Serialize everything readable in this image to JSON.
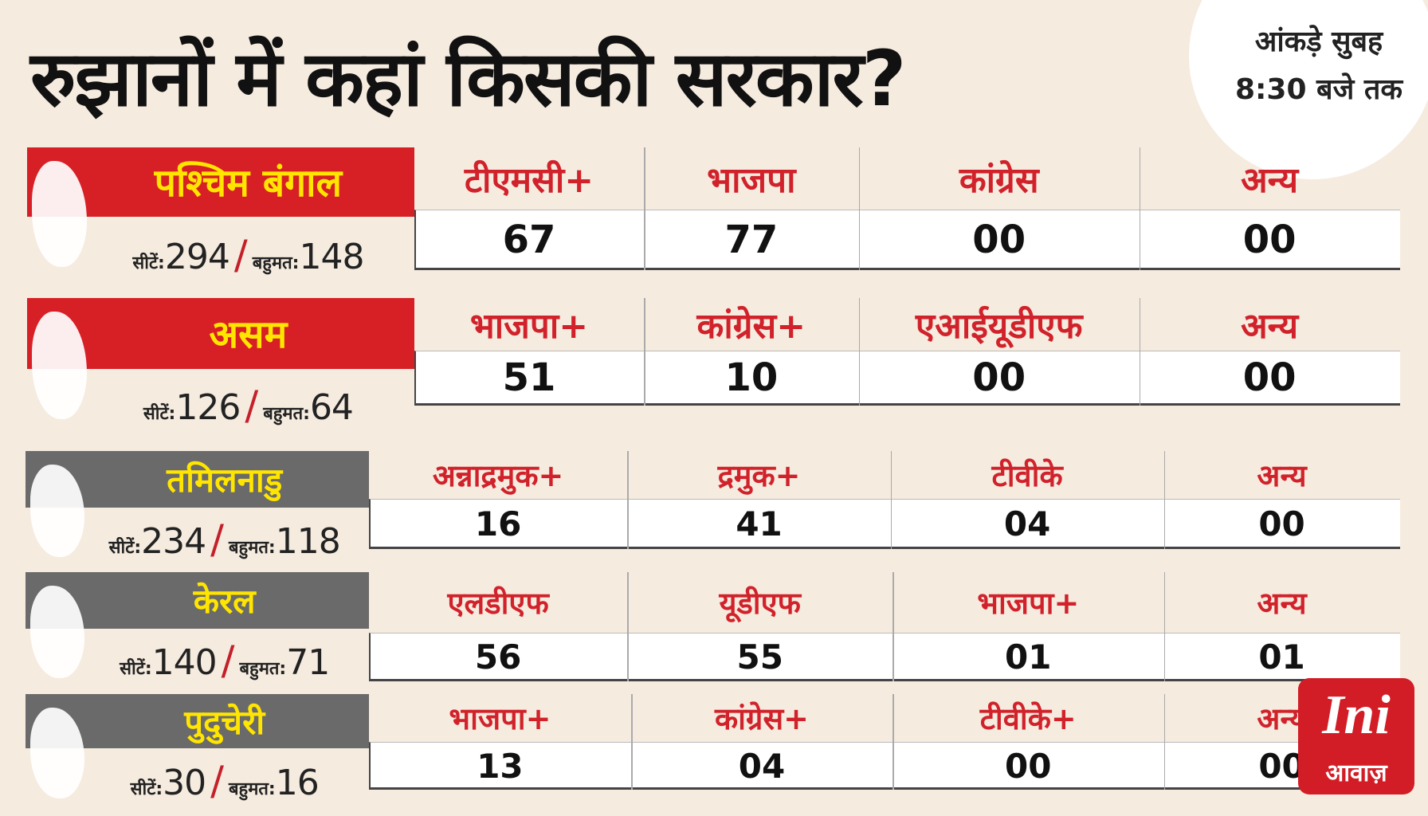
{
  "header": {
    "title": "रुझानों में कहां किसकी सरकार?",
    "note_line1": "आंकड़े सुबह",
    "note_line2": "8:30 बजे तक"
  },
  "states": [
    {
      "name": "पश्चिम बंगाल",
      "seats_label": "सीटें:",
      "seats": "294",
      "majority_label": "बहुमत:",
      "majority": "148",
      "parties": [
        "टीएमसी+",
        "भाजपा",
        "कांग्रेस",
        "अन्य"
      ],
      "leads": [
        "67",
        "77",
        "00",
        "00"
      ]
    },
    {
      "name": "असम",
      "seats_label": "सीटें:",
      "seats": "126",
      "majority_label": "बहुमत:",
      "majority": "64",
      "parties": [
        "भाजपा+",
        "कांग्रेस+",
        "एआईयूडीएफ",
        "अन्य"
      ],
      "leads": [
        "51",
        "10",
        "00",
        "00"
      ]
    },
    {
      "name": "तमिलनाडु",
      "seats_label": "सीटें:",
      "seats": "234",
      "majority_label": "बहुमत:",
      "majority": "118",
      "parties": [
        "अन्नाद्रमुक+",
        "द्रमुक+",
        "टीवीके",
        "अन्य"
      ],
      "leads": [
        "16",
        "41",
        "04",
        "00"
      ]
    },
    {
      "name": "केरल",
      "seats_label": "सीटें:",
      "seats": "140",
      "majority_label": "बहुमत:",
      "majority": "71",
      "parties": [
        "एलडीएफ",
        "यूडीएफ",
        "भाजपा+",
        "अन्य"
      ],
      "leads": [
        "56",
        "55",
        "01",
        "01"
      ]
    },
    {
      "name": "पुदुचेरी",
      "seats_label": "सीटें:",
      "seats": "30",
      "majority_label": "बहुमत:",
      "majority": "16",
      "parties": [
        "भाजपा+",
        "कांग्रेस+",
        "टीवीके+",
        "अन्य"
      ],
      "leads": [
        "13",
        "04",
        "00",
        "00"
      ]
    }
  ],
  "logo": {
    "mark": "Ini",
    "text": "आवाज़"
  }
}
